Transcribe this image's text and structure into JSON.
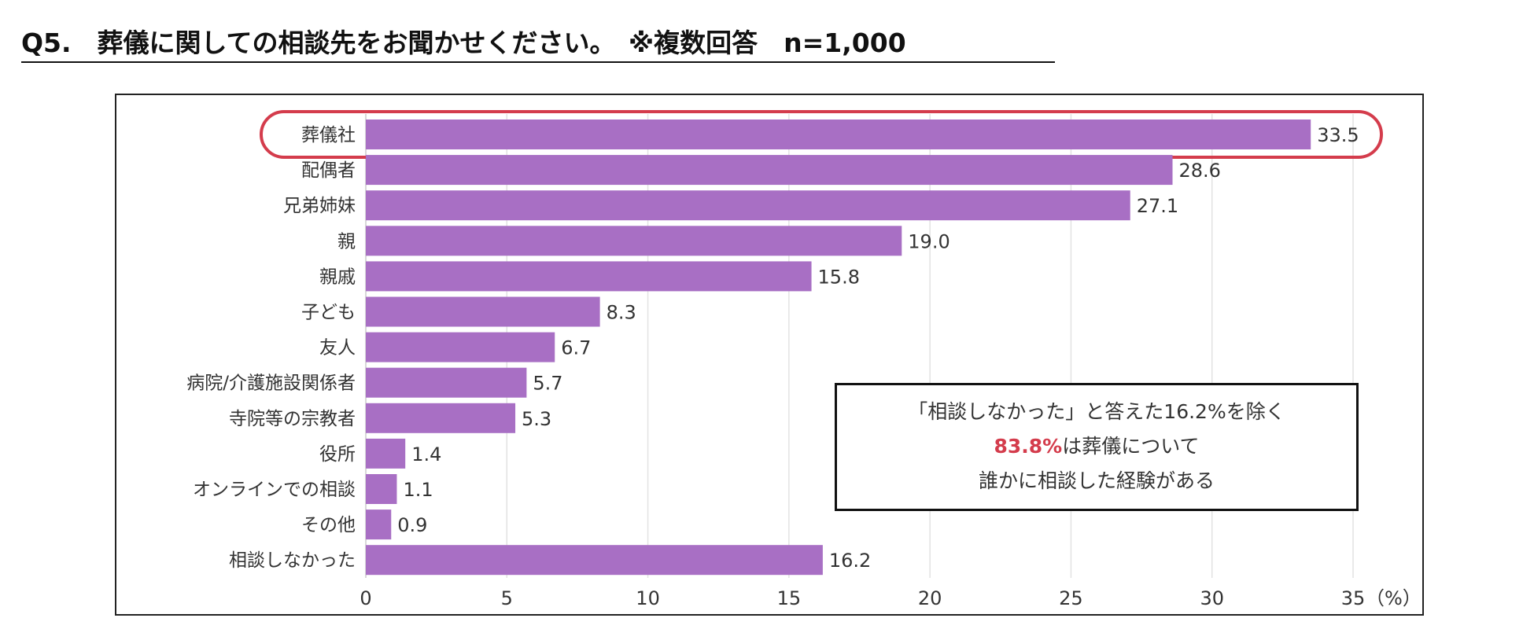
{
  "title": "Q5.　葬儀に関しての相談先をお聞かせください。　※複数回答　n=1,000",
  "chart_data": {
    "type": "bar",
    "orientation": "horizontal",
    "categories": [
      "葬儀社",
      "配偶者",
      "兄弟姉妹",
      "親",
      "親戚",
      "子ども",
      "友人",
      "病院/介護施設関係者",
      "寺院等の宗教者",
      "役所",
      "オンラインでの相談",
      "その他",
      "相談しなかった"
    ],
    "values": [
      33.5,
      28.6,
      27.1,
      19.0,
      15.8,
      8.3,
      6.7,
      5.7,
      5.3,
      1.4,
      1.1,
      0.9,
      16.2
    ],
    "value_labels": [
      "33.5",
      "28.6",
      "27.1",
      "19.0",
      "15.8",
      "8.3",
      "6.7",
      "5.7",
      "5.3",
      "1.4",
      "1.1",
      "0.9",
      "16.2"
    ],
    "xlim": [
      0,
      35
    ],
    "xticks": [
      "0",
      "5",
      "10",
      "15",
      "20",
      "25",
      "30",
      "35"
    ],
    "xunit": "（%）",
    "grid": true,
    "highlighted_category": "葬儀社",
    "bar_color": "#a86fc4",
    "highlight_color": "#d43c4c"
  },
  "note": {
    "line1": "「相談しなかった」と答えた16.2%を除く",
    "line2_highlight": "83.8%",
    "line2_rest": "は葬儀について",
    "line3": "誰かに相談した経験がある"
  }
}
